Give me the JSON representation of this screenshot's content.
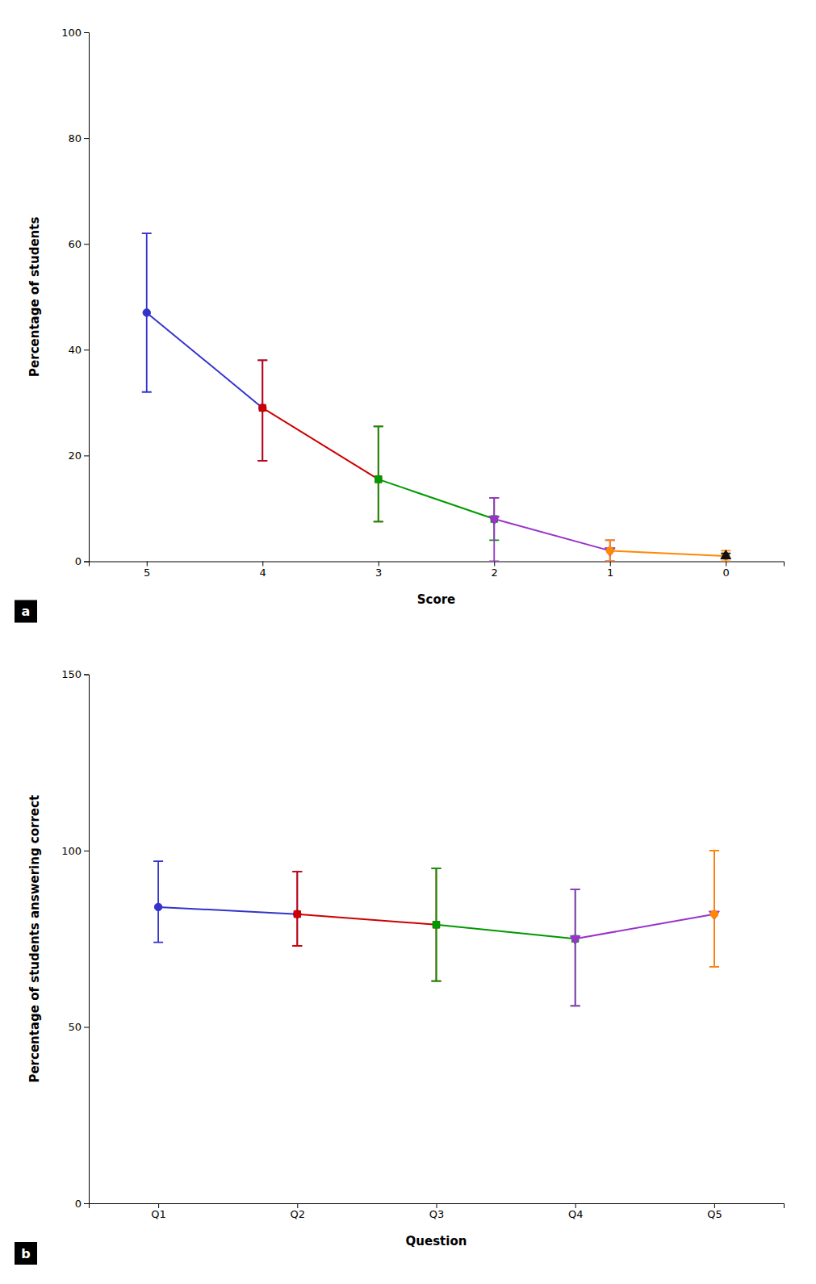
{
  "chart_data": [
    {
      "type": "line",
      "xlabel": "Score",
      "ylabel": "Percentage of students",
      "panel_label": "a",
      "xlim": [
        5.5,
        -0.5
      ],
      "ylim": [
        0,
        100
      ],
      "xticks": [
        5,
        4,
        3,
        2,
        1,
        0
      ],
      "yticks": [
        0,
        20,
        40,
        60,
        80,
        100
      ],
      "grid": false,
      "series": [
        {
          "color": "#3333CC",
          "marker": "circle",
          "x": [
            5,
            4
          ],
          "values": [
            47,
            29
          ],
          "yerr_lo": [
            15,
            10
          ],
          "yerr_hi": [
            15,
            9
          ]
        },
        {
          "color": "#CC0000",
          "marker": "square",
          "x": [
            4,
            3
          ],
          "values": [
            29,
            15.5
          ],
          "yerr_lo": [
            10,
            8
          ],
          "yerr_hi": [
            9,
            10
          ]
        },
        {
          "color": "#009900",
          "marker": "square",
          "x": [
            3,
            2
          ],
          "values": [
            15.5,
            8
          ],
          "yerr_lo": [
            8,
            4
          ],
          "yerr_hi": [
            10,
            4
          ]
        },
        {
          "color": "#9933CC",
          "marker": "triangle-down",
          "x": [
            2,
            1
          ],
          "values": [
            8,
            2
          ],
          "yerr_lo": [
            8,
            2
          ],
          "yerr_hi": [
            4,
            2
          ]
        },
        {
          "color": "#FF8800",
          "marker": "circle",
          "x": [
            1,
            0
          ],
          "values": [
            2,
            1
          ],
          "yerr_lo": [
            2,
            1
          ],
          "yerr_hi": [
            2,
            1
          ]
        },
        {
          "color": "#111111",
          "marker": "triangle-up",
          "x": [
            0
          ],
          "values": [
            1
          ],
          "yerr_lo": [
            0.5
          ],
          "yerr_hi": [
            0.5
          ]
        }
      ]
    },
    {
      "type": "line",
      "xlabel": "Question",
      "ylabel": "Percentage of students answering correct",
      "panel_label": "b",
      "categories": [
        "Q1",
        "Q2",
        "Q3",
        "Q4",
        "Q5"
      ],
      "ylim": [
        0,
        150
      ],
      "yticks": [
        0,
        50,
        100,
        150
      ],
      "grid": false,
      "series": [
        {
          "color": "#3333CC",
          "marker": "circle",
          "values": [
            84,
            82,
            null,
            null,
            null
          ],
          "yerr_lo": [
            10,
            9,
            null,
            null,
            null
          ],
          "yerr_hi": [
            13,
            12,
            null,
            null,
            null
          ]
        },
        {
          "color": "#CC0000",
          "marker": "square",
          "values": [
            null,
            82,
            79,
            null,
            null
          ],
          "yerr_lo": [
            null,
            9,
            16,
            null,
            null
          ],
          "yerr_hi": [
            null,
            12,
            16,
            null,
            null
          ]
        },
        {
          "color": "#009900",
          "marker": "square",
          "values": [
            null,
            null,
            79,
            75,
            null
          ],
          "yerr_lo": [
            null,
            null,
            16,
            19,
            null
          ],
          "yerr_hi": [
            null,
            null,
            16,
            14,
            null
          ]
        },
        {
          "color": "#9933CC",
          "marker": "triangle-down",
          "values": [
            null,
            null,
            null,
            75,
            82
          ],
          "yerr_lo": [
            null,
            null,
            null,
            19,
            15
          ],
          "yerr_hi": [
            null,
            null,
            null,
            14,
            18
          ]
        },
        {
          "color": "#FF8800",
          "marker": "circle",
          "values": [
            null,
            null,
            null,
            null,
            82
          ],
          "yerr_lo": [
            null,
            null,
            null,
            null,
            15
          ],
          "yerr_hi": [
            null,
            null,
            null,
            null,
            18
          ]
        }
      ]
    }
  ]
}
